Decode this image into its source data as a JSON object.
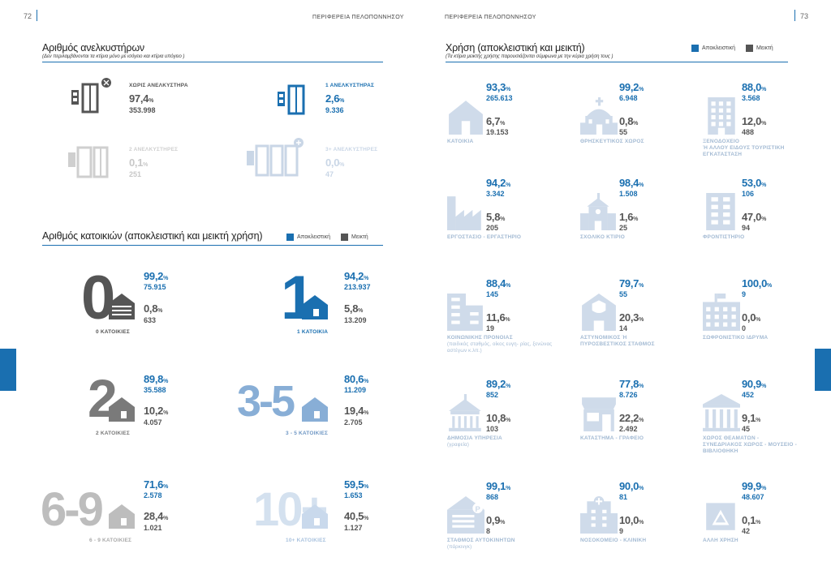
{
  "header": {
    "left_page": "72",
    "right_page": "73",
    "left_running": "ΠΕΡΙΦΕΡΕΙΑ ΠΕΛΟΠΟΝΝΗΣΟΥ",
    "right_running": "ΠΕΡΙΦΕΡΕΙΑ ΠΕΛΟΠΟΝΝΗΣΟΥ"
  },
  "legend": {
    "exclusive": "Αποκλειστική",
    "mixed": "Μεικτή",
    "exclusive_color": "#1a6fb0",
    "mixed_color": "#555555"
  },
  "elevators": {
    "title": "Αριθμός ανελκυστήρων",
    "subtitle": "(Δεν περιλαμβάνονται τα κτίρια μόνο με ισόγειο και κτίρια υπόγειο )",
    "items": [
      {
        "label": "ΧΩΡΙΣ ΑΝΕΛΚΥΣΤΗΡΑ",
        "pct": "97,4",
        "count": "353.998"
      },
      {
        "label": "1 ΑΝΕΛΚΥΣΤΗΡΑΣ",
        "pct": "2,6",
        "count": "9.336"
      },
      {
        "label": "2 ΑΝΕΛΚΥΣΤΗΡΕΣ",
        "pct": "0,1",
        "count": "251"
      },
      {
        "label": "3+ ΑΝΕΛΚΥΣΤΗΡΕΣ",
        "pct": "0,0",
        "count": "47"
      }
    ]
  },
  "dwellings": {
    "title": "Αριθμός κατοικιών (αποκλειστική και μεικτή χρήση)",
    "items": [
      {
        "big": "0",
        "label": "0 ΚΑΤΟΙΚΙΕΣ",
        "ex_pct": "99,2",
        "ex_count": "75.915",
        "mx_pct": "0,8",
        "mx_count": "633"
      },
      {
        "big": "1",
        "label": "1 ΚΑΤΟΙΚΙΑ",
        "ex_pct": "94,2",
        "ex_count": "213.937",
        "mx_pct": "5,8",
        "mx_count": "13.209"
      },
      {
        "big": "2",
        "label": "2 ΚΑΤΟΙΚΙΕΣ",
        "ex_pct": "89,8",
        "ex_count": "35.588",
        "mx_pct": "10,2",
        "mx_count": "4.057"
      },
      {
        "big": "3-5",
        "label": "3 - 5 ΚΑΤΟΙΚΙΕΣ",
        "ex_pct": "80,6",
        "ex_count": "11.209",
        "mx_pct": "19,4",
        "mx_count": "2.705"
      },
      {
        "big": "6-9",
        "label": "6 - 9 ΚΑΤΟΙΚΙΕΣ",
        "ex_pct": "71,6",
        "ex_count": "2.578",
        "mx_pct": "28,4",
        "mx_count": "1.021"
      },
      {
        "big": "10+",
        "label": "10+ ΚΑΤΟΙΚΙΕΣ",
        "ex_pct": "59,5",
        "ex_count": "1.653",
        "mx_pct": "40,5",
        "mx_count": "1.127"
      }
    ]
  },
  "usage": {
    "title": "Χρήση (αποκλειστική και μεικτή)",
    "subtitle": "(Τα κτίρια μεικτής χρήσης παρουσιάζονται σύμφωνα με την κύρια χρήση τους )",
    "pct_unit": "%",
    "items": [
      {
        "icon": "house-icon",
        "label": "ΚΑΤΟΙΚΙΑ",
        "label2": "",
        "sub": "",
        "ex_pct": "93,3",
        "ex_count": "265.613",
        "mx_pct": "6,7",
        "mx_count": "19.153"
      },
      {
        "icon": "church-icon",
        "label": "ΘΡΗΣΚΕΥΤΙΚΟΣ ΧΩΡΟΣ",
        "label2": "",
        "sub": "",
        "ex_pct": "99,2",
        "ex_count": "6.948",
        "mx_pct": "0,8",
        "mx_count": "55"
      },
      {
        "icon": "hotel-icon",
        "label": "ΞΕΝΟΔΟΧΕΙΟ",
        "label2": "Ή ΑΛΛΟΥ ΕΙΔΟΥΣ ΤΟΥΡΙΣΤΙΚΗ ΕΓΚΑΤΑΣΤΑΣΗ",
        "sub": "",
        "ex_pct": "88,0",
        "ex_count": "3.568",
        "mx_pct": "12,0",
        "mx_count": "488"
      },
      {
        "icon": "factory-icon",
        "label": "ΕΡΓΟΣΤΑΣΙΟ - ΕΡΓΑΣΤΗΡΙΟ",
        "label2": "",
        "sub": "",
        "ex_pct": "94,2",
        "ex_count": "3.342",
        "mx_pct": "5,8",
        "mx_count": "205"
      },
      {
        "icon": "school-icon",
        "label": "ΣΧΟΛΙΚΟ ΚΤΙΡΙΟ",
        "label2": "",
        "sub": "",
        "ex_pct": "98,4",
        "ex_count": "1.508",
        "mx_pct": "1,6",
        "mx_count": "25"
      },
      {
        "icon": "tutoring-icon",
        "label": "ΦΡΟΝΤΙΣΤΗΡΙΟ",
        "label2": "",
        "sub": "",
        "ex_pct": "53,0",
        "ex_count": "106",
        "mx_pct": "47,0",
        "mx_count": "94"
      },
      {
        "icon": "welfare-icon",
        "label": "ΚΟΙΝΩΝΙΚΗΣ ΠΡΟΝΟΙΑΣ",
        "label2": "",
        "sub": "(παιδικός σταθμός, οίκος ευγη- ρίας, ξενώνας αστέγων κ.λπ.)",
        "ex_pct": "88,4",
        "ex_count": "145",
        "mx_pct": "11,6",
        "mx_count": "19"
      },
      {
        "icon": "police-icon",
        "label": "ΑΣΤΥΝΟΜΙΚΟΣ Ή",
        "label2": "ΠΥΡΟΣΒΕΣΤΙΚΟΣ ΣΤΑΘΜΟΣ",
        "sub": "",
        "ex_pct": "79,7",
        "ex_count": "55",
        "mx_pct": "20,3",
        "mx_count": "14"
      },
      {
        "icon": "prison-icon",
        "label": "ΣΩΦΡΟΝΙΣΤΙΚΟ ΙΔΡΥΜΑ",
        "label2": "",
        "sub": "",
        "ex_pct": "100,0",
        "ex_count": "9",
        "mx_pct": "0,0",
        "mx_count": "0"
      },
      {
        "icon": "public-service-icon",
        "label": "ΔΗΜΟΣΙΑ ΥΠΗΡΕΣΙΑ",
        "label2": "",
        "sub": "(γραφεία)",
        "ex_pct": "89,2",
        "ex_count": "852",
        "mx_pct": "10,8",
        "mx_count": "103"
      },
      {
        "icon": "shop-icon",
        "label": "ΚΑΤΑΣΤΗΜΑ - ΓΡΑΦΕΙΟ",
        "label2": "",
        "sub": "",
        "ex_pct": "77,8",
        "ex_count": "8.726",
        "mx_pct": "22,2",
        "mx_count": "2.492"
      },
      {
        "icon": "museum-icon",
        "label": "ΧΩΡΟΣ ΘΕΑΜΑΤΩΝ -",
        "label2": "ΣΥΝΕΔΡΙΑΚΟΣ ΧΩΡΟΣ - ΜΟΥΣΕΙΟ - ΒΙΒΛΙΟΘΗΚΗ",
        "sub": "",
        "ex_pct": "90,9",
        "ex_count": "452",
        "mx_pct": "9,1",
        "mx_count": "45"
      },
      {
        "icon": "parking-icon",
        "label": "ΣΤΑΘΜΟΣ ΑΥΤΟΚΙΝΗΤΩΝ",
        "label2": "",
        "sub": "(πάρκινγκ)",
        "ex_pct": "99,1",
        "ex_count": "868",
        "mx_pct": "0,9",
        "mx_count": "8"
      },
      {
        "icon": "hospital-icon",
        "label": "ΝΟΣΟΚΟΜΕΙΟ - ΚΛΙΝΙΚΗ",
        "label2": "",
        "sub": "",
        "ex_pct": "90,0",
        "ex_count": "81",
        "mx_pct": "10,0",
        "mx_count": "9"
      },
      {
        "icon": "other-use-icon",
        "label": "ΑΛΛΗ ΧΡΗΣΗ",
        "label2": "",
        "sub": "",
        "ex_pct": "99,9",
        "ex_count": "48.607",
        "mx_pct": "0,1",
        "mx_count": "42"
      }
    ]
  }
}
